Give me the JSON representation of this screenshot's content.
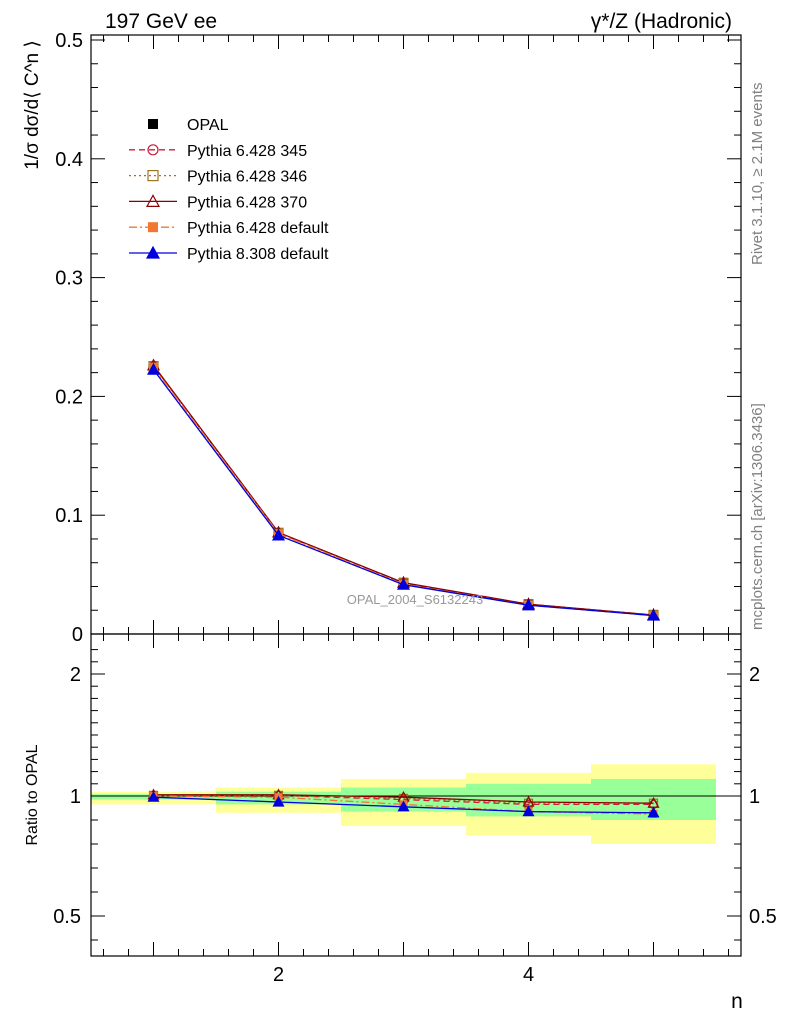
{
  "header": {
    "left_title": "197 GeV ee",
    "right_title": "γ*/Z (Hadronic)"
  },
  "side_text": {
    "rivet": "Rivet 3.1.10, ≥ 2.1M events",
    "mcplots": "mcplots.cern.ch [arXiv:1306.3436]"
  },
  "watermark": "OPAL_2004_S6132243",
  "chart_data": [
    {
      "type": "line",
      "title": "",
      "xlabel": "n",
      "ylabel": "1/σ dσ/d⟨ C^n ⟩",
      "xlim": [
        0.5,
        5.7
      ],
      "ylim": [
        0,
        0.5
      ],
      "yticks": [
        "0",
        "0.1",
        "0.2",
        "0.3",
        "0.4",
        "0.5"
      ],
      "x": [
        1,
        2,
        3,
        4,
        5
      ],
      "legend_position": "top-left",
      "series": [
        {
          "name": "OPAL",
          "color": "#000000",
          "marker": "filled-square",
          "line": "none",
          "values": [
            0.224,
            0.0845,
            0.0435,
            0.0255,
            0.0165
          ]
        },
        {
          "name": "Pythia 6.428 345",
          "color": "#c81e3c",
          "marker": "open-circle",
          "line": "dashed",
          "values": [
            0.2255,
            0.085,
            0.0428,
            0.025,
            0.016
          ]
        },
        {
          "name": "Pythia 6.428 346",
          "color": "#9b7420",
          "marker": "open-square",
          "line": "dotted",
          "values": [
            0.2255,
            0.0852,
            0.043,
            0.025,
            0.016
          ]
        },
        {
          "name": "Pythia 6.428 370",
          "color": "#8b0000",
          "marker": "open-triangle",
          "line": "solid",
          "values": [
            0.2262,
            0.0855,
            0.0432,
            0.0251,
            0.016
          ]
        },
        {
          "name": "Pythia 6.428 default",
          "color": "#f07830",
          "marker": "filled-square",
          "line": "dashdot",
          "values": [
            0.2245,
            0.0845,
            0.042,
            0.0242,
            0.0155
          ]
        },
        {
          "name": "Pythia 8.308 default",
          "color": "#0000dd",
          "marker": "filled-triangle",
          "line": "solid",
          "values": [
            0.2225,
            0.083,
            0.0415,
            0.0242,
            0.0155
          ]
        }
      ]
    },
    {
      "type": "line",
      "title": "",
      "xlabel": "n",
      "ylabel": "Ratio to OPAL",
      "xlim": [
        0.5,
        5.7
      ],
      "ylim": [
        0.35,
        2.3
      ],
      "yticks": [
        "0.5",
        "1",
        "2"
      ],
      "xticks": [
        "2",
        "4"
      ],
      "x": [
        1,
        2,
        3,
        4,
        5
      ],
      "bands": {
        "green": [
          [
            0.985,
            1.015
          ],
          [
            0.965,
            1.035
          ],
          [
            0.935,
            1.07
          ],
          [
            0.915,
            1.1
          ],
          [
            0.9,
            1.14
          ]
        ],
        "yellow": [
          [
            0.965,
            1.035
          ],
          [
            0.93,
            1.07
          ],
          [
            0.875,
            1.14
          ],
          [
            0.835,
            1.19
          ],
          [
            0.8,
            1.26
          ]
        ]
      },
      "series": [
        {
          "name": "Pythia 6.428 345",
          "color": "#c81e3c",
          "line": "dashed",
          "values": [
            1.005,
            1.005,
            0.985,
            0.965,
            0.965
          ]
        },
        {
          "name": "Pythia 6.428 346",
          "color": "#9b7420",
          "line": "dotted",
          "values": [
            1.005,
            1.005,
            0.99,
            0.97,
            0.97
          ]
        },
        {
          "name": "Pythia 6.428 370",
          "color": "#8b0000",
          "line": "solid",
          "values": [
            1.01,
            1.01,
            0.995,
            0.975,
            0.97
          ]
        },
        {
          "name": "Pythia 6.428 default",
          "color": "#f07830",
          "line": "dashdot",
          "values": [
            1.0,
            0.995,
            0.965,
            0.935,
            0.925
          ]
        },
        {
          "name": "Pythia 8.308 default",
          "color": "#0000dd",
          "line": "solid",
          "values": [
            0.995,
            0.975,
            0.955,
            0.935,
            0.93
          ]
        }
      ]
    }
  ]
}
